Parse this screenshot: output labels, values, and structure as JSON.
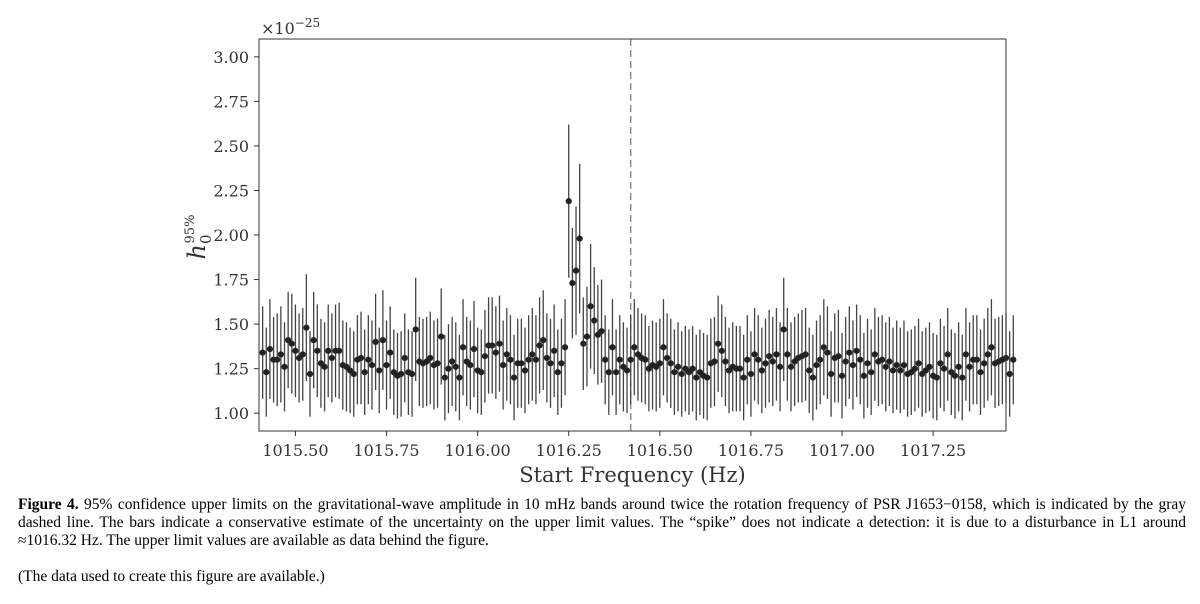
{
  "chart_data": {
    "type": "scatter",
    "title": "",
    "xlabel": "Start Frequency (Hz)",
    "ylabel": "h0^95%",
    "ylabel_main": "h",
    "ylabel_sub": "0",
    "ylabel_sup": "95%",
    "y_multiplier_base": "×10",
    "y_multiplier_exp": "−25",
    "xlim": [
      1015.4,
      1017.45
    ],
    "ylim": [
      0.9,
      3.1
    ],
    "x_ticks": [
      1015.5,
      1015.75,
      1016.0,
      1016.25,
      1016.5,
      1016.75,
      1017.0,
      1017.25
    ],
    "x_tick_labels": [
      "1015.50",
      "1015.75",
      "1016.00",
      "1016.25",
      "1016.50",
      "1016.75",
      "1017.00",
      "1017.25"
    ],
    "y_ticks": [
      1.0,
      1.25,
      1.5,
      1.75,
      2.0,
      2.25,
      2.5,
      2.75,
      3.0
    ],
    "y_tick_labels": [
      "1.00",
      "1.25",
      "1.50",
      "1.75",
      "2.00",
      "2.25",
      "2.50",
      "2.75",
      "3.00"
    ],
    "reference_line_x": 1016.42,
    "grid": false,
    "point_color": "#222222",
    "errorbar_color": "#444444",
    "reference_line_color": "#888888",
    "x_start": 1015.41,
    "x_step": 0.01,
    "values": [
      1.34,
      1.23,
      1.36,
      1.3,
      1.3,
      1.33,
      1.26,
      1.41,
      1.39,
      1.35,
      1.31,
      1.33,
      1.48,
      1.22,
      1.41,
      1.35,
      1.28,
      1.26,
      1.35,
      1.31,
      1.35,
      1.35,
      1.27,
      1.26,
      1.24,
      1.22,
      1.3,
      1.31,
      1.23,
      1.3,
      1.27,
      1.4,
      1.24,
      1.41,
      1.27,
      1.34,
      1.23,
      1.21,
      1.22,
      1.31,
      1.23,
      1.22,
      1.47,
      1.29,
      1.28,
      1.29,
      1.31,
      1.27,
      1.28,
      1.43,
      1.2,
      1.25,
      1.29,
      1.26,
      1.2,
      1.37,
      1.29,
      1.27,
      1.36,
      1.24,
      1.23,
      1.32,
      1.38,
      1.38,
      1.34,
      1.39,
      1.27,
      1.33,
      1.3,
      1.2,
      1.28,
      1.28,
      1.24,
      1.3,
      1.33,
      1.3,
      1.38,
      1.41,
      1.31,
      1.28,
      1.35,
      1.23,
      1.28,
      1.37,
      2.19,
      1.73,
      1.8,
      1.98,
      1.39,
      1.43,
      1.6,
      1.52,
      1.44,
      1.46,
      1.3,
      1.23,
      1.37,
      1.23,
      1.3,
      1.26,
      1.24,
      1.3,
      1.37,
      1.33,
      1.31,
      1.3,
      1.25,
      1.27,
      1.26,
      1.28,
      1.37,
      1.31,
      1.28,
      1.23,
      1.26,
      1.22,
      1.25,
      1.23,
      1.25,
      1.2,
      1.23,
      1.21,
      1.2,
      1.28,
      1.29,
      1.39,
      1.35,
      1.29,
      1.24,
      1.26,
      1.25,
      1.25,
      1.2,
      1.3,
      1.22,
      1.33,
      1.3,
      1.24,
      1.28,
      1.32,
      1.29,
      1.33,
      1.26,
      1.47,
      1.33,
      1.26,
      1.29,
      1.31,
      1.32,
      1.33,
      1.24,
      1.2,
      1.27,
      1.3,
      1.37,
      1.34,
      1.22,
      1.31,
      1.32,
      1.21,
      1.29,
      1.34,
      1.27,
      1.35,
      1.3,
      1.21,
      1.28,
      1.23,
      1.33,
      1.29,
      1.3,
      1.26,
      1.29,
      1.24,
      1.27,
      1.24,
      1.27,
      1.22,
      1.23,
      1.25,
      1.28,
      1.22,
      1.24,
      1.26,
      1.21,
      1.2,
      1.28,
      1.25,
      1.33,
      1.23,
      1.21,
      1.26,
      1.2,
      1.33,
      1.26,
      1.3,
      1.3,
      1.23,
      1.28,
      1.33,
      1.37,
      1.28,
      1.29,
      1.3,
      1.31,
      1.22,
      1.3
    ],
    "errors": [
      0.26,
      0.25,
      0.28,
      0.24,
      0.26,
      0.27,
      0.25,
      0.27,
      0.28,
      0.26,
      0.25,
      0.26,
      0.3,
      0.24,
      0.27,
      0.26,
      0.25,
      0.25,
      0.26,
      0.25,
      0.26,
      0.27,
      0.25,
      0.25,
      0.24,
      0.24,
      0.25,
      0.26,
      0.24,
      0.25,
      0.25,
      0.27,
      0.24,
      0.28,
      0.25,
      0.26,
      0.24,
      0.24,
      0.24,
      0.25,
      0.24,
      0.24,
      0.29,
      0.25,
      0.25,
      0.25,
      0.26,
      0.25,
      0.25,
      0.27,
      0.24,
      0.25,
      0.25,
      0.25,
      0.24,
      0.27,
      0.25,
      0.25,
      0.27,
      0.24,
      0.24,
      0.26,
      0.27,
      0.27,
      0.26,
      0.27,
      0.25,
      0.26,
      0.25,
      0.24,
      0.25,
      0.25,
      0.24,
      0.25,
      0.26,
      0.25,
      0.27,
      0.28,
      0.25,
      0.25,
      0.26,
      0.24,
      0.25,
      0.27,
      0.43,
      0.31,
      0.36,
      0.42,
      0.26,
      0.28,
      0.35,
      0.3,
      0.28,
      0.29,
      0.25,
      0.24,
      0.27,
      0.24,
      0.25,
      0.25,
      0.24,
      0.25,
      0.27,
      0.26,
      0.25,
      0.25,
      0.24,
      0.25,
      0.25,
      0.25,
      0.27,
      0.25,
      0.25,
      0.24,
      0.25,
      0.24,
      0.24,
      0.24,
      0.24,
      0.24,
      0.24,
      0.24,
      0.24,
      0.25,
      0.25,
      0.27,
      0.26,
      0.25,
      0.24,
      0.25,
      0.24,
      0.24,
      0.24,
      0.25,
      0.24,
      0.26,
      0.25,
      0.24,
      0.25,
      0.26,
      0.25,
      0.26,
      0.25,
      0.29,
      0.26,
      0.25,
      0.25,
      0.25,
      0.26,
      0.26,
      0.24,
      0.24,
      0.25,
      0.25,
      0.27,
      0.26,
      0.24,
      0.25,
      0.26,
      0.24,
      0.25,
      0.26,
      0.25,
      0.26,
      0.25,
      0.24,
      0.25,
      0.24,
      0.26,
      0.25,
      0.25,
      0.25,
      0.25,
      0.24,
      0.25,
      0.24,
      0.25,
      0.24,
      0.24,
      0.24,
      0.25,
      0.24,
      0.24,
      0.25,
      0.24,
      0.24,
      0.25,
      0.24,
      0.26,
      0.24,
      0.24,
      0.25,
      0.24,
      0.26,
      0.25,
      0.25,
      0.25,
      0.24,
      0.25,
      0.26,
      0.27,
      0.25,
      0.25,
      0.25,
      0.25,
      0.24,
      0.25
    ]
  },
  "caption": {
    "label": "Figure 4.",
    "text": " 95% confidence upper limits on the gravitational-wave amplitude in 10 mHz bands around twice the rotation frequency of PSR J1653−0158, which is indicated by the gray dashed line. The bars indicate a conservative estimate of the uncertainty on the upper limit values. The “spike” does not indicate a detection: it is due to a disturbance in L1 around ≈1016.32 Hz. The upper limit values are available as data behind the figure."
  },
  "data_note": "(The data used to create this figure are available.)"
}
